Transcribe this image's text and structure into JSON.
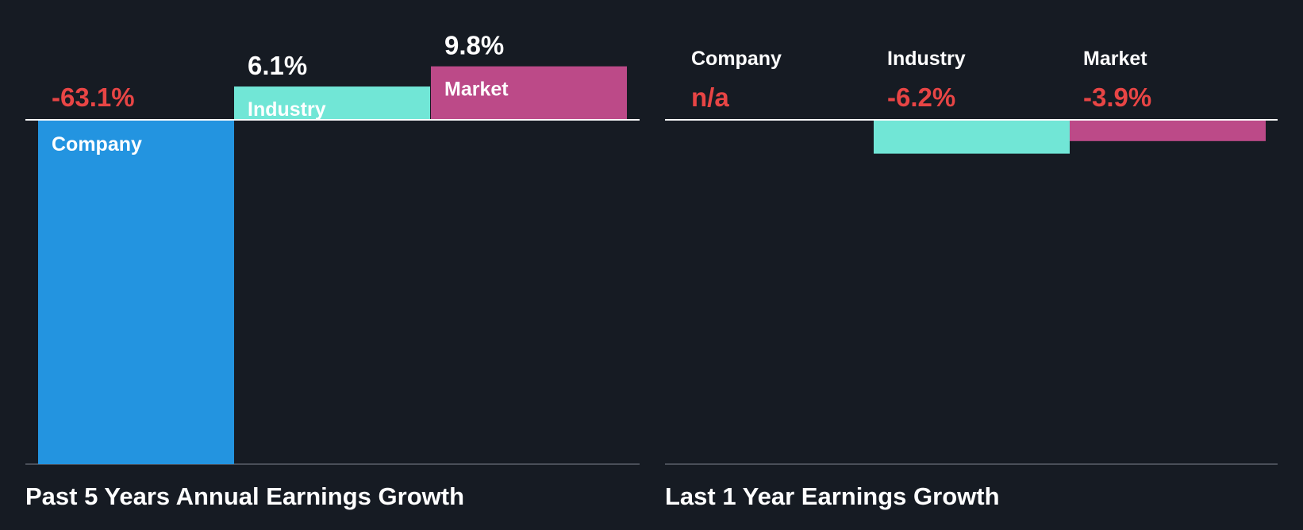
{
  "colors": {
    "background": "#161b23",
    "company": "#2394e0",
    "industry": "#71e6d6",
    "market": "#bc4a88",
    "negative_text": "#e84545",
    "positive_text": "#ffffff",
    "baseline": "#ffffff",
    "axis_bottom": "#4a4f59"
  },
  "chart_data": [
    {
      "type": "bar",
      "title": "Past 5 Years Annual Earnings Growth",
      "categories": [
        "Company",
        "Industry",
        "Market"
      ],
      "values": [
        -63.1,
        6.1,
        9.8
      ],
      "value_labels": [
        "-63.1%",
        "6.1%",
        "9.8%"
      ],
      "unit": "%",
      "ylim": [
        -63.1,
        12.0
      ],
      "grid": false
    },
    {
      "type": "bar",
      "title": "Last 1 Year Earnings Growth",
      "categories": [
        "Company",
        "Industry",
        "Market"
      ],
      "values": [
        null,
        -6.2,
        -3.9
      ],
      "value_labels": [
        "n/a",
        "-6.2%",
        "-3.9%"
      ],
      "unit": "%",
      "ylim": [
        -63.1,
        12.0
      ],
      "grid": false
    }
  ]
}
